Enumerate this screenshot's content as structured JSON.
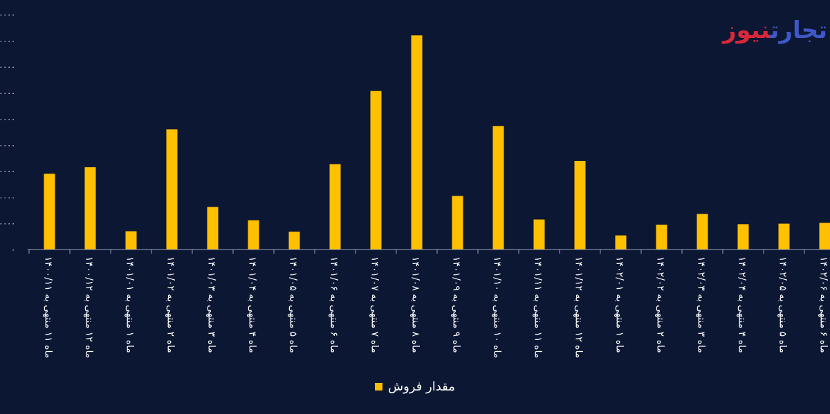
{
  "logo": {
    "part1": "تجارت",
    "part2": "نیوز"
  },
  "chart_data": {
    "type": "bar",
    "categories": [
      "ماه ۱۱ منتهی به ۱۴۰۰/۱۱",
      "ماه ۱۲ منتهی به ۱۴۰۰/۱۲",
      "ماه ۱ منتهی به ۱۴۰۱/۰۱",
      "ماه ۲ منتهی به ۱۴۰۱/۰۲",
      "ماه ۳ منتهی به ۱۴۰۱/۰۳",
      "ماه ۴ منتهی به ۱۴۰۱/۰۴",
      "ماه ۵ منتهی به ۱۴۰۱/۰۵",
      "ماه ۶ منتهی به ۱۴۰۱/۰۶",
      "ماه ۷ منتهی به ۱۴۰۱/۰۷",
      "ماه ۸ منتهی به ۱۴۰۱/۰۸",
      "ماه ۹ منتهی به ۱۴۰۱/۰۹",
      "ماه ۱۰ منتهی به ۱۴۰۱/۱۰",
      "ماه ۱۱ منتهی به ۱۴۰۱/۱۱",
      "ماه ۱۲ منتهی به ۱۴۰۱/۱۲",
      "ماه ۱ منتهی به ۱۴۰۲/۰۱",
      "ماه ۲ منتهی به ۱۴۰۲/۰۲",
      "ماه ۳ منتهی به ۱۴۰۲/۰۳",
      "ماه ۴ منتهی به ۱۴۰۲/۰۴",
      "ماه ۵ منتهی به ۱۴۰۲/۰۵",
      "ماه ۶ منتهی به ۱۴۰۲/۰۶"
    ],
    "series": [
      {
        "name": "مقدار فروش",
        "color": "#ffc000",
        "values": [
          2.9,
          3.15,
          0.7,
          4.6,
          1.63,
          1.12,
          0.68,
          3.27,
          6.07,
          8.2,
          2.05,
          4.73,
          1.15,
          3.39,
          0.54,
          0.95,
          1.36,
          0.97,
          0.99,
          1.02
        ]
      }
    ],
    "y_tick_labels": [
      "۰",
      "۰۰۰۰",
      "۰۰۰۰",
      "۰۰۰۰",
      "۰۰۰۰",
      "۰۰۰۰",
      "۰۰۰۰",
      "۰۰۰۰",
      "۰۰۰۰",
      "۰۰۰۰"
    ],
    "ylim": [
      0,
      9
    ],
    "grid": false,
    "legend_position": "bottom"
  }
}
